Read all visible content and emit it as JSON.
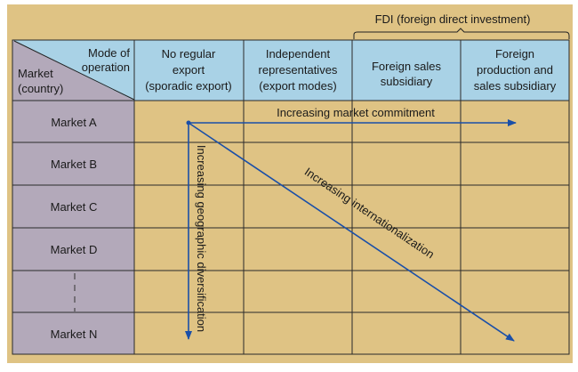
{
  "fdi_label": "FDI (foreign direct investment)",
  "corner": {
    "top": [
      "Mode of",
      "operation"
    ],
    "bottom": [
      "Market",
      "(country)"
    ]
  },
  "columns": [
    [
      "No regular",
      "export",
      "(sporadic export)"
    ],
    [
      "Independent",
      "representatives",
      "(export modes)"
    ],
    [
      "Foreign sales",
      "subsidiary"
    ],
    [
      "Foreign",
      "production and",
      "sales subsidiary"
    ]
  ],
  "markets": [
    "Market A",
    "Market B",
    "Market C",
    "Market D",
    "",
    "Market N"
  ],
  "arrows": {
    "horizontal": "Increasing market commitment",
    "vertical": "Increasing geographic diversification",
    "diagonal": "Increasing internationalization"
  },
  "colors": {
    "background": "#dfc384",
    "header": "#a9d2e6",
    "market_column": "#b3a9ba",
    "arrow": "#1a4fa8"
  }
}
